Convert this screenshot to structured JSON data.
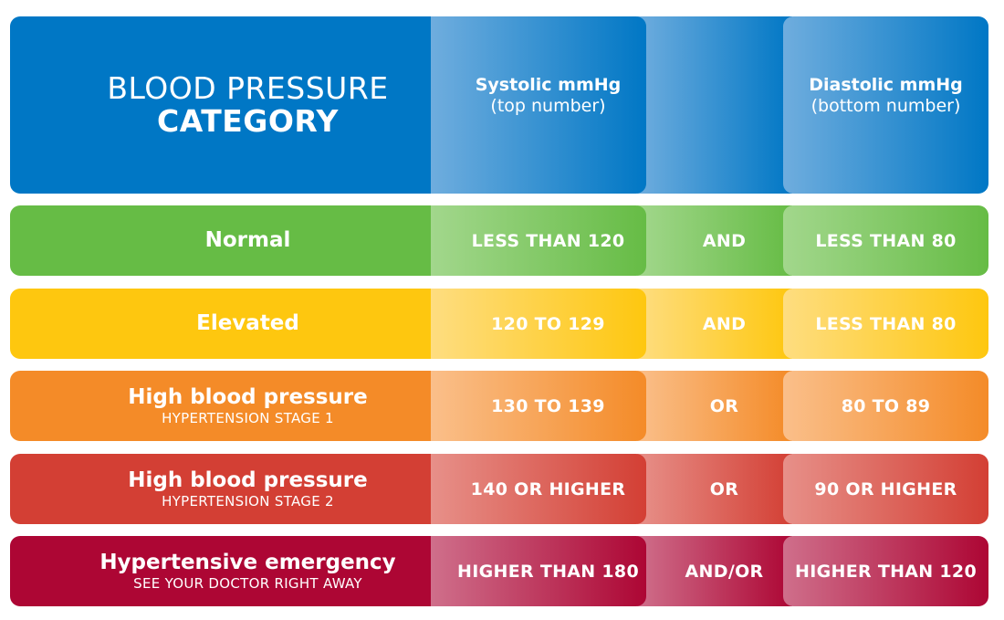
{
  "header": {
    "title_line1": "BLOOD PRESSURE",
    "title_line2": "CATEGORY",
    "systolic_label": "Systolic mmHg",
    "systolic_sub": "(top number)",
    "diastolic_label": "Diastolic mmHg",
    "diastolic_sub": "(bottom number)",
    "colors": {
      "dark": "#0077c5",
      "light": "#6fadde"
    }
  },
  "rows": [
    {
      "category": "Normal",
      "subtitle": "",
      "systolic": "LESS THAN 120",
      "conjunction": "AND",
      "diastolic": "LESS THAN 80",
      "colors": {
        "dark": "#66bc45",
        "light": "#a2d78c"
      }
    },
    {
      "category": "Elevated",
      "subtitle": "",
      "systolic": "120 TO 129",
      "conjunction": "AND",
      "diastolic": "LESS THAN 80",
      "colors": {
        "dark": "#fec70f",
        "light": "#fedd80"
      }
    },
    {
      "category": "High blood pressure",
      "subtitle": "HYPERTENSION STAGE 1",
      "systolic": "130 TO 139",
      "conjunction": "OR",
      "diastolic": "80 TO 89",
      "colors": {
        "dark": "#f48b28",
        "light": "#fabf8a"
      }
    },
    {
      "category": "High blood pressure",
      "subtitle": "HYPERTENSION STAGE 2",
      "systolic": "140 OR HIGHER",
      "conjunction": "OR",
      "diastolic": "90 OR HIGHER",
      "colors": {
        "dark": "#d33f34",
        "light": "#e79089"
      }
    },
    {
      "category": "Hypertensive emergency",
      "subtitle": "SEE YOUR DOCTOR RIGHT AWAY",
      "systolic": "HIGHER THAN 180",
      "conjunction": "AND/OR",
      "diastolic": "HIGHER THAN 120",
      "colors": {
        "dark": "#ad0634",
        "light": "#cf6f8b"
      }
    }
  ]
}
